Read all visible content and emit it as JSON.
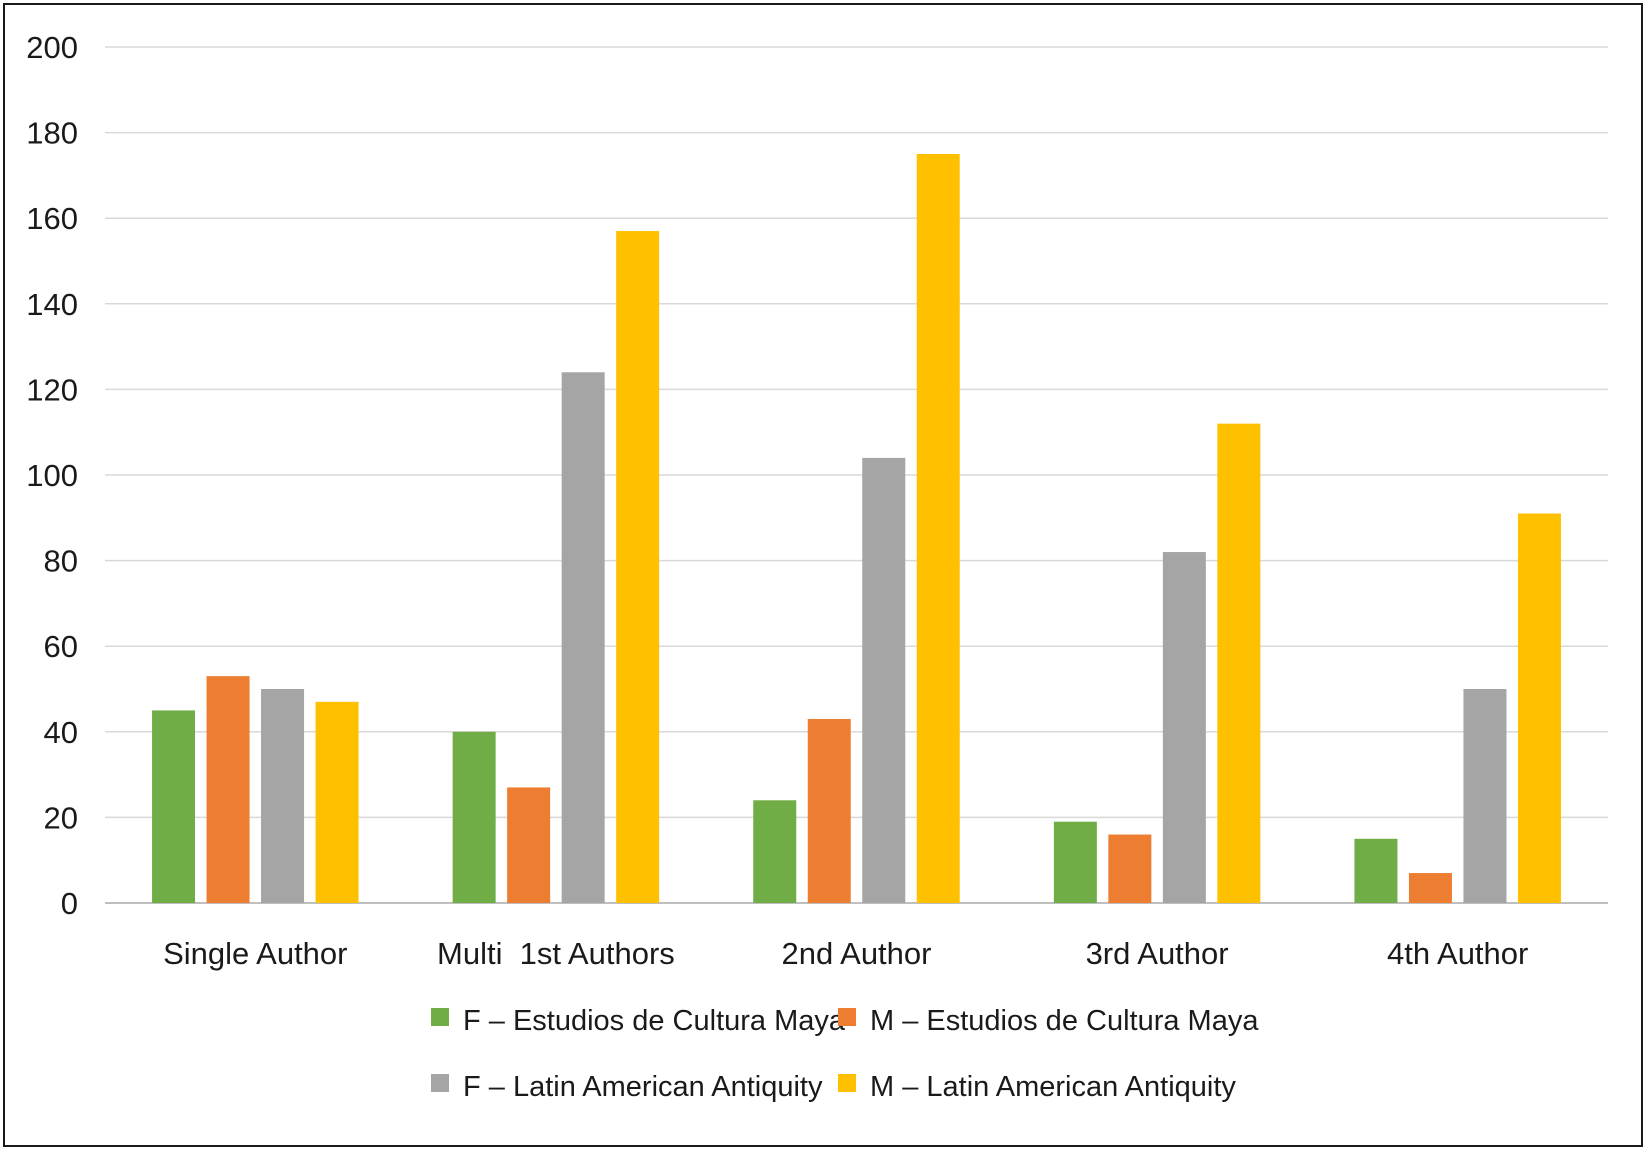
{
  "chart_data": {
    "type": "bar",
    "title": "",
    "xlabel": "",
    "ylabel": "",
    "ylim": [
      0,
      200
    ],
    "yticks": [
      0,
      20,
      40,
      60,
      80,
      100,
      120,
      140,
      160,
      180,
      200
    ],
    "grid": true,
    "legend_position": "bottom",
    "categories": [
      "Single Author",
      "Multi  1st Authors",
      "2nd Author",
      "3rd Author",
      "4th Author"
    ],
    "series": [
      {
        "name": "F – Estudios de Cultura Maya",
        "color": "#70ad47",
        "values": [
          45,
          40,
          24,
          19,
          15
        ]
      },
      {
        "name": "M – Estudios de Cultura Maya",
        "color": "#ed7d31",
        "values": [
          53,
          27,
          43,
          16,
          7
        ]
      },
      {
        "name": "F – Latin American Antiquity",
        "color": "#a5a5a5",
        "values": [
          50,
          124,
          104,
          82,
          50
        ]
      },
      {
        "name": "M – Latin American Antiquity",
        "color": "#ffc000",
        "values": [
          47,
          157,
          175,
          112,
          91
        ]
      }
    ]
  }
}
